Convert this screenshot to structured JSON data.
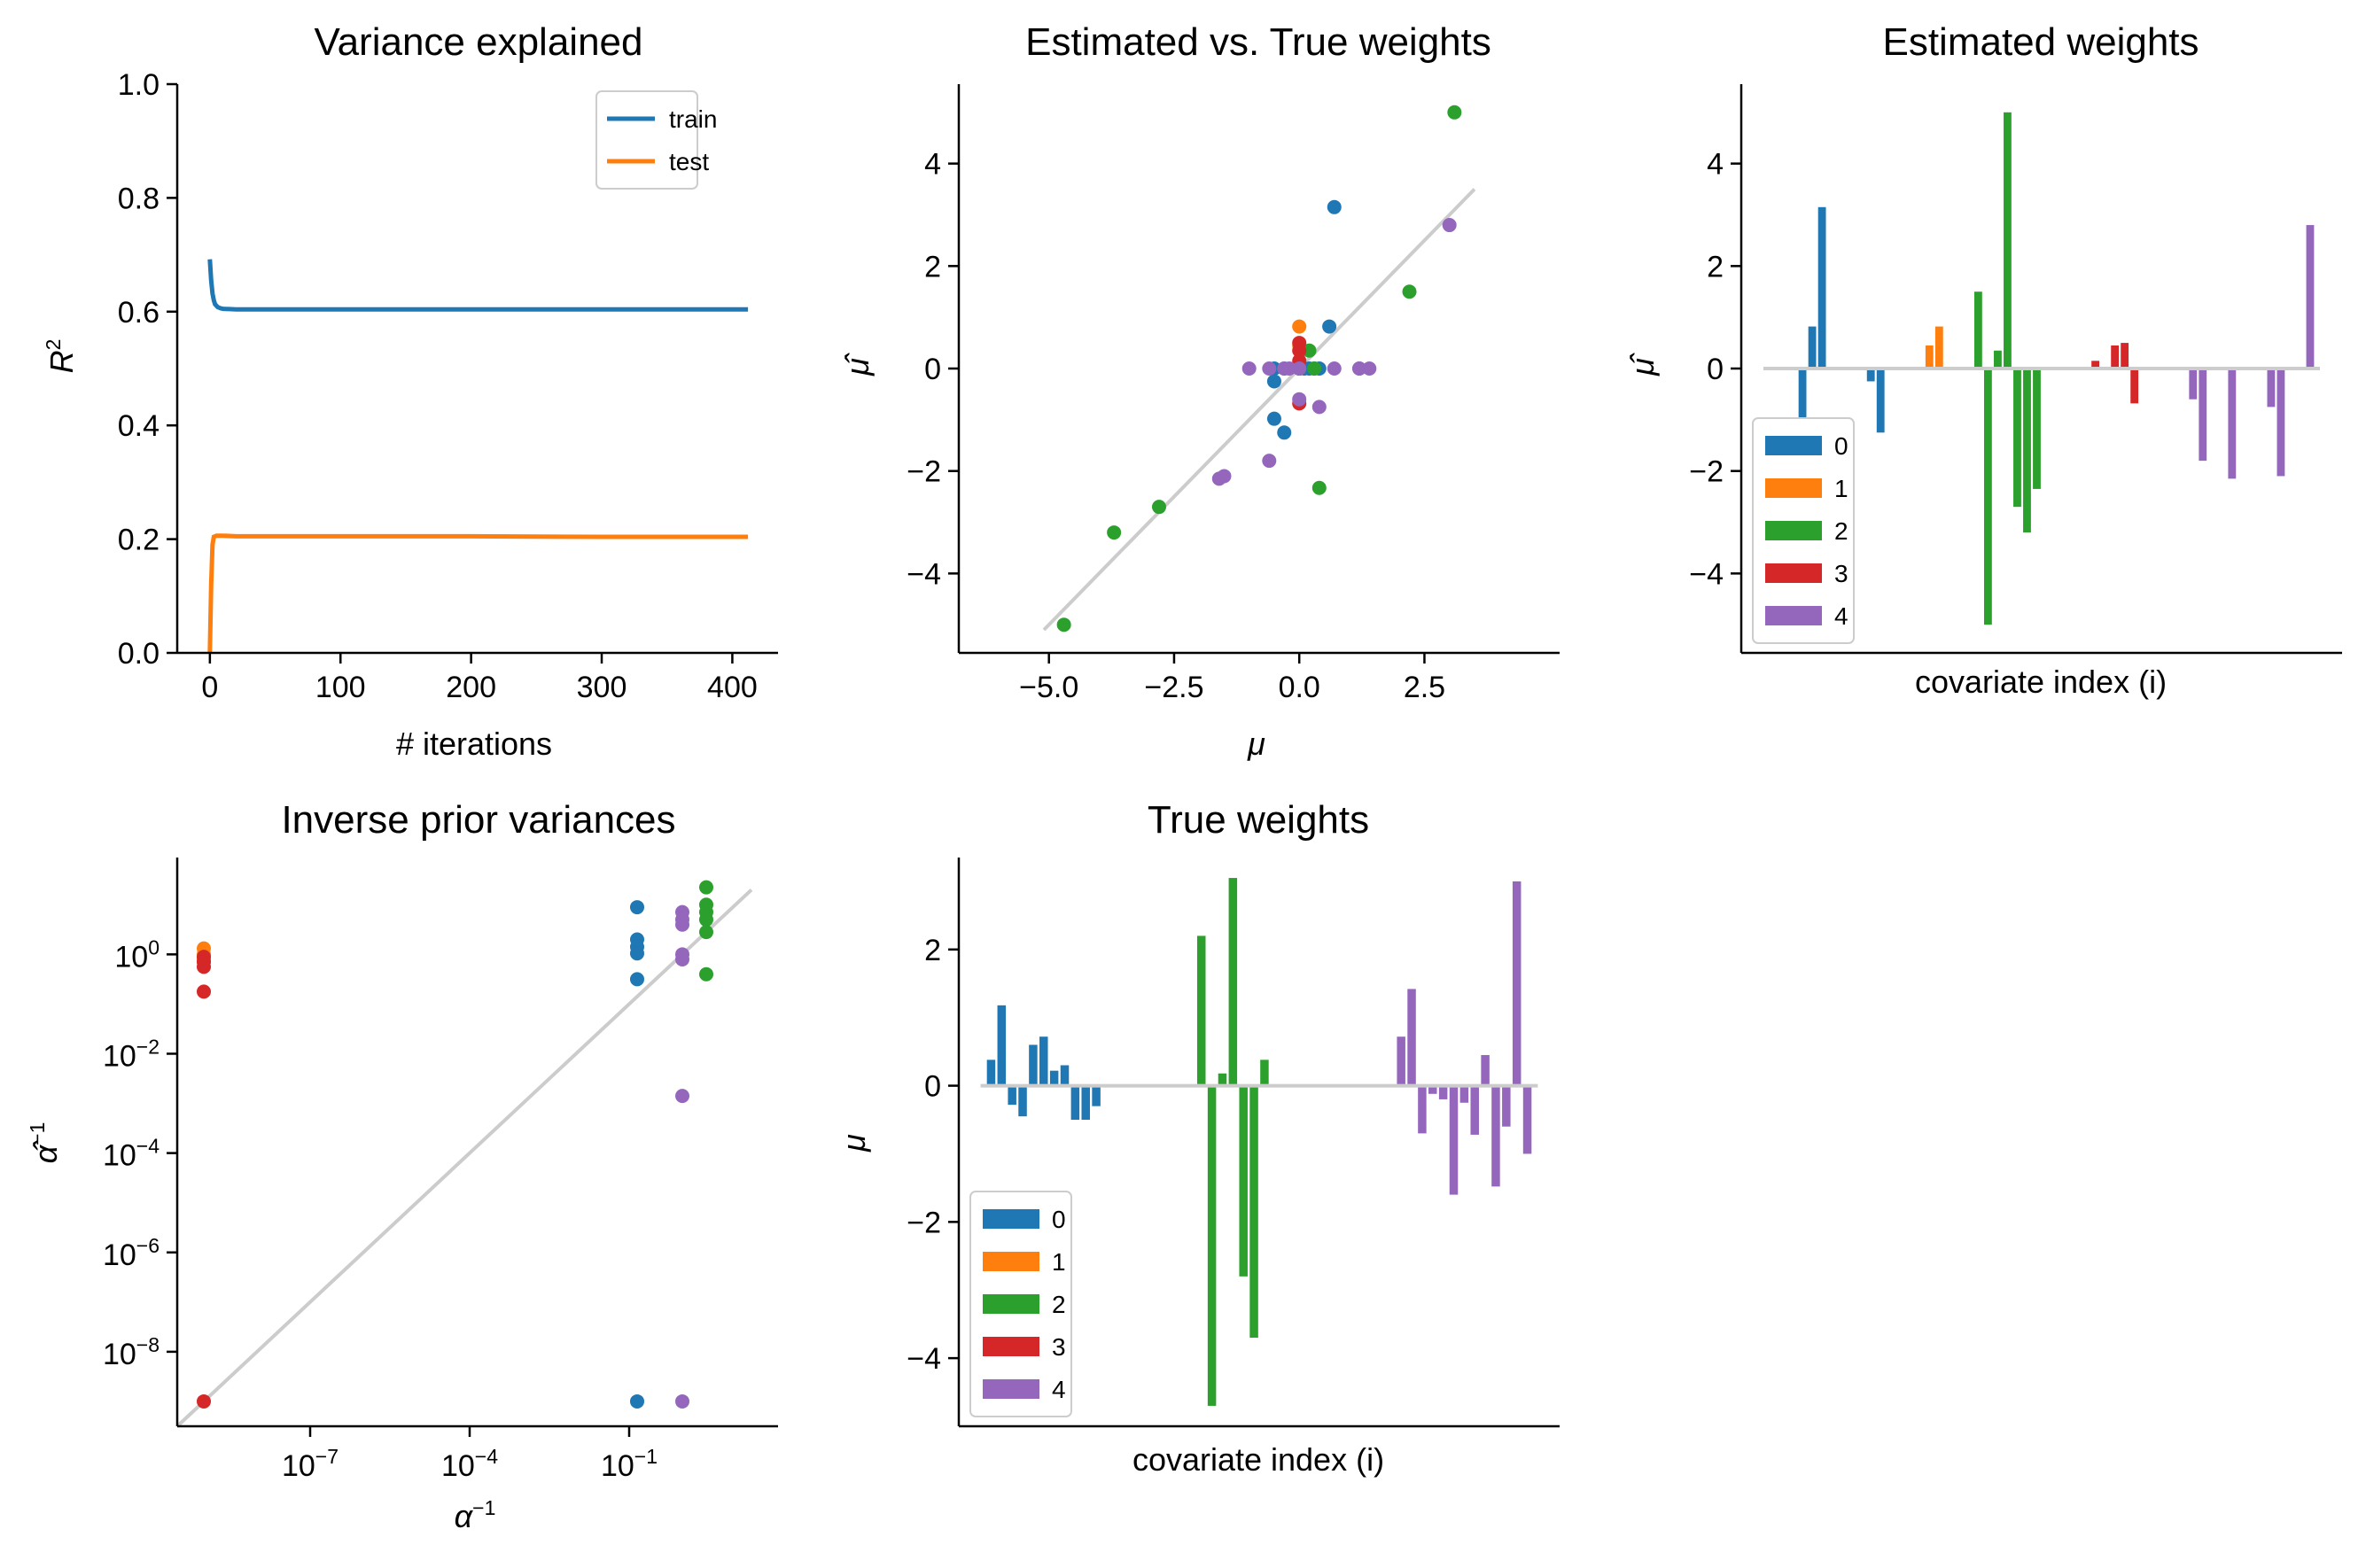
{
  "colors": {
    "0": "#1f77b4",
    "1": "#ff7f0e",
    "2": "#2ca02c",
    "3": "#d62728",
    "4": "#9467bd",
    "identity": "#cccccc"
  },
  "chart_data": [
    {
      "id": "variance",
      "type": "line",
      "title": "Variance explained",
      "xlabel": "# iterations",
      "ylabel": "R^2",
      "xlim": [
        -25,
        435
      ],
      "ylim": [
        0,
        1
      ],
      "xticks": [
        0,
        100,
        200,
        300,
        400
      ],
      "yticks": [
        "0.0",
        "0.2",
        "0.4",
        "0.6",
        "0.8",
        "1.0"
      ],
      "legend": "upper-right",
      "series": [
        {
          "name": "train",
          "color": "#1f77b4",
          "x": [
            0,
            1,
            2,
            3,
            4,
            6,
            8,
            10,
            15,
            20,
            30,
            50,
            100,
            200,
            300,
            412
          ],
          "y": [
            0.692,
            0.655,
            0.632,
            0.62,
            0.613,
            0.608,
            0.606,
            0.605,
            0.6045,
            0.604,
            0.604,
            0.604,
            0.604,
            0.604,
            0.604,
            0.604
          ]
        },
        {
          "name": "test",
          "color": "#ff7f0e",
          "x": [
            0,
            1,
            2,
            3,
            5,
            10,
            20,
            50,
            100,
            200,
            300,
            412
          ],
          "y": [
            0.0,
            0.12,
            0.19,
            0.204,
            0.206,
            0.206,
            0.205,
            0.205,
            0.205,
            0.205,
            0.204,
            0.204
          ]
        }
      ]
    },
    {
      "id": "scatter",
      "type": "scatter",
      "title": "Estimated vs. True weights",
      "xlabel": "μ",
      "ylabel": "μ̂",
      "xlim": [
        -6.8,
        5.2
      ],
      "ylim": [
        -5.55,
        5.55
      ],
      "xticks": [
        "−5.0",
        "−2.5",
        "0.0",
        "2.5"
      ],
      "yticks": [
        "−4",
        "−2",
        "0",
        "2",
        "4"
      ],
      "identity": [
        -5.1,
        3.5
      ],
      "points": [
        {
          "group": 0,
          "x": [
            0.7,
            0.6,
            1.2,
            -0.5,
            -0.3,
            0.1,
            0.2,
            -0.5,
            -0.3,
            0.3,
            0.4,
            0.0,
            -0.5,
            0.0
          ],
          "y": [
            3.15,
            0.82,
            0.0,
            -0.25,
            -1.25,
            0.0,
            0.0,
            -0.98,
            0.0,
            0.0,
            0.0,
            0.0,
            0.0,
            0.0
          ]
        },
        {
          "group": 1,
          "x": [
            0.0,
            0.0
          ],
          "y": [
            0.82,
            0.45
          ]
        },
        {
          "group": 2,
          "x": [
            3.1,
            2.2,
            -4.7,
            -3.7,
            -2.8,
            0.2,
            0.4,
            0.0,
            0.3,
            0.0
          ],
          "y": [
            5.0,
            1.5,
            -5.0,
            -3.2,
            -2.7,
            0.35,
            -2.33,
            0.0,
            0.0,
            0.0
          ]
        },
        {
          "group": 3,
          "x": [
            0.0,
            0.0,
            0.0,
            0.0
          ],
          "y": [
            0.5,
            0.35,
            0.15,
            -0.68
          ]
        },
        {
          "group": 4,
          "x": [
            3.0,
            -1.5,
            -1.6,
            -0.6,
            0.4,
            0.0,
            -1.0,
            -0.6,
            1.4,
            0.7,
            -0.3,
            -0.2,
            1.2,
            0.0
          ],
          "y": [
            2.8,
            -2.1,
            -2.15,
            -1.8,
            -0.75,
            -0.6,
            0.0,
            0.0,
            0.0,
            0.0,
            0.0,
            0.0,
            0.0,
            0.0
          ]
        }
      ]
    },
    {
      "id": "estimated",
      "type": "bar",
      "title": "Estimated weights",
      "xlabel": "covariate index (i)",
      "ylabel": "μ̂",
      "ylim": [
        -5.55,
        5.55
      ],
      "yticks": [
        "−4",
        "−2",
        "0",
        "2",
        "4"
      ],
      "legend": "lower-left",
      "groups": [
        {
          "name": "0",
          "values": [
            0,
            0,
            0,
            -1.0,
            0.82,
            3.15,
            0,
            0,
            0,
            0,
            -0.25,
            -1.25
          ]
        },
        {
          "name": "1",
          "values": [
            0,
            0,
            0,
            0,
            0.45,
            0.82
          ]
        },
        {
          "name": "2",
          "values": [
            0,
            0,
            0,
            1.5,
            -5.0,
            0.35,
            5.0,
            -2.7,
            -3.2,
            -2.35,
            0,
            0
          ]
        },
        {
          "name": "3",
          "values": [
            0,
            0,
            0,
            0.15,
            0,
            0.45,
            0.5,
            -0.68
          ]
        },
        {
          "name": "4",
          "values": [
            0,
            0,
            0,
            0,
            0,
            -0.6,
            -1.8,
            0,
            0,
            -2.15,
            0,
            0,
            0,
            -0.75,
            -2.1,
            0,
            0,
            2.8
          ]
        }
      ]
    },
    {
      "id": "inverse",
      "type": "scatter",
      "title": "Inverse prior variances",
      "xlabel": "α^−1",
      "ylabel": "α̂^−1",
      "log": true,
      "xlim": [
        -9.5,
        1.8
      ],
      "ylim": [
        -9.5,
        1.95
      ],
      "xticks": [
        -7,
        -4,
        -1
      ],
      "yticks": [
        -8,
        -6,
        -4,
        -2,
        0
      ],
      "identity": [
        -9.5,
        1.3
      ],
      "points": [
        {
          "group": 1,
          "x": [
            -9,
            -9,
            -9,
            -9
          ],
          "y": [
            0.12,
            0.0,
            -0.1,
            -0.15
          ]
        },
        {
          "group": 3,
          "x": [
            -9,
            -9,
            -9,
            -9,
            -9
          ],
          "y": [
            -0.05,
            -0.15,
            -0.25,
            -0.75,
            -9.0
          ]
        },
        {
          "group": 0,
          "x": [
            -0.85,
            -0.85,
            -0.85,
            -0.85,
            -0.85,
            -0.85
          ],
          "y": [
            0.95,
            0.3,
            0.15,
            0.02,
            -0.5,
            -9.0
          ]
        },
        {
          "group": 4,
          "x": [
            0.0,
            0.0,
            0.0,
            0.0,
            0.0,
            0.0,
            0.0
          ],
          "y": [
            0.85,
            0.7,
            0.6,
            0.0,
            -0.1,
            -2.85,
            -9.0
          ]
        },
        {
          "group": 2,
          "x": [
            0.45,
            0.45,
            0.45,
            0.45,
            0.45,
            0.45
          ],
          "y": [
            1.35,
            1.0,
            0.85,
            0.7,
            0.45,
            -0.4
          ]
        }
      ]
    },
    {
      "id": "true",
      "type": "bar",
      "title": "True weights",
      "xlabel": "covariate index (i)",
      "ylabel": "μ",
      "ylim": [
        -5.0,
        3.35
      ],
      "yticks": [
        "−4",
        "−2",
        "0",
        "2"
      ],
      "legend": "lower-left",
      "groups": [
        {
          "name": "0",
          "values": [
            0.38,
            1.18,
            -0.28,
            -0.45,
            0.6,
            0.72,
            0.22,
            0.3,
            -0.5,
            -0.5,
            -0.3
          ]
        },
        {
          "name": "1",
          "values": []
        },
        {
          "name": "2",
          "values": [
            0,
            0,
            0,
            0,
            0,
            0,
            0,
            0,
            0,
            2.2,
            -4.7,
            0.18,
            3.05,
            -2.8,
            -3.7,
            0.38
          ]
        },
        {
          "name": "3",
          "values": []
        },
        {
          "name": "4",
          "values": [
            0,
            0,
            0,
            0,
            0,
            0,
            0,
            0,
            0,
            0,
            0,
            0,
            0.72,
            1.42,
            -0.7,
            -0.12,
            -0.2,
            -1.6,
            -0.25,
            -0.72,
            0.45,
            -1.48,
            -0.6,
            3.0,
            -1.0
          ]
        }
      ]
    }
  ]
}
